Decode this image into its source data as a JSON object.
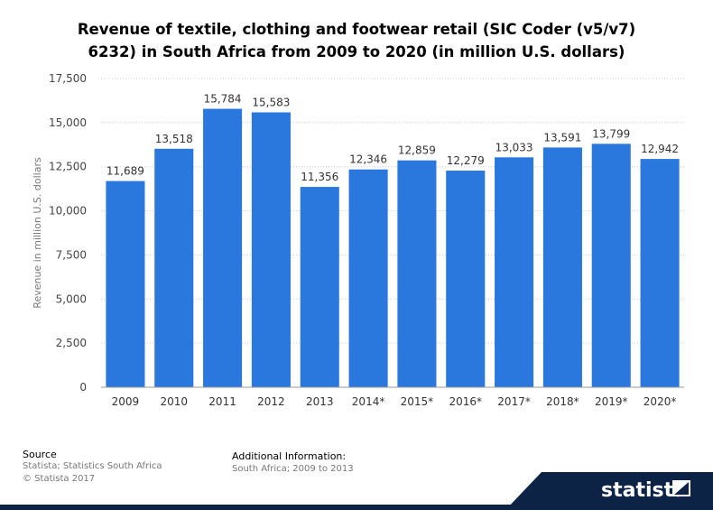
{
  "chart_data": {
    "type": "bar",
    "title": "Revenue of textile, clothing and footwear retail (SIC Coder (v5/v7) 6232) in South Africa from 2009 to 2020 (in million U.S. dollars)",
    "title_lines": [
      "Revenue of textile, clothing and footwear retail (SIC Coder (v5/v7)",
      "6232) in South Africa from 2009 to 2020 (in million U.S. dollars)"
    ],
    "ylabel": "Revenue in million U.S. dollars",
    "xlabel": "",
    "categories": [
      "2009",
      "2010",
      "2011",
      "2012",
      "2013",
      "2014*",
      "2015*",
      "2016*",
      "2017*",
      "2018*",
      "2019*",
      "2020*"
    ],
    "values": [
      11689,
      13518,
      15784,
      15583,
      11356,
      12346,
      12859,
      12279,
      13033,
      13591,
      13799,
      12942
    ],
    "value_labels": [
      "11,689",
      "13,518",
      "15,784",
      "15,583",
      "11,356",
      "12,346",
      "12,859",
      "12,279",
      "13,033",
      "13,591",
      "13,799",
      "12,942"
    ],
    "ylim": [
      0,
      17500
    ],
    "yticks": [
      0,
      2500,
      5000,
      7500,
      10000,
      12500,
      15000,
      17500
    ],
    "ytick_labels": [
      "0",
      "2,500",
      "5,000",
      "7,500",
      "10,000",
      "12,500",
      "15,000",
      "17,500"
    ],
    "grid": true,
    "bar_color": "#2a78dd"
  },
  "footer": {
    "source_title": "Source",
    "source_lines": [
      "Statista; Statistics South Africa",
      "© Statista 2017"
    ],
    "additional_title": "Additional Information:",
    "additional_text": "South Africa; 2009 to 2013"
  },
  "brand": {
    "name": "statista",
    "color": "#0d2346"
  }
}
